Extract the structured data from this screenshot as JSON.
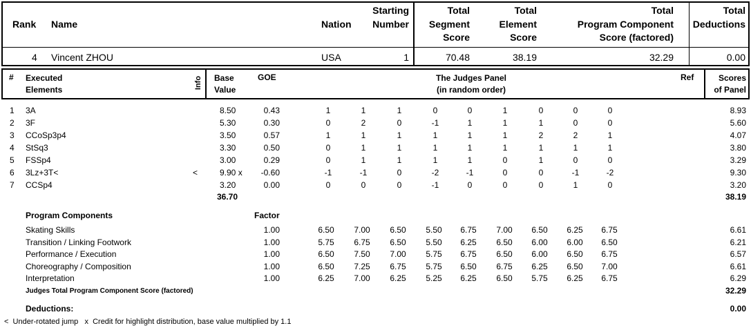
{
  "summary": {
    "headers": {
      "rank": "Rank",
      "name": "Name",
      "nation": "Nation",
      "starting_number": "Starting\nNumber",
      "total_segment": "Total\nSegment\nScore",
      "total_element": "Total\nElement\nScore",
      "total_program": "Total\nProgram Component\nScore (factored)",
      "total_deductions": "Total\nDeductions"
    },
    "row": {
      "rank": "4",
      "name": "Vincent ZHOU",
      "nation": "USA",
      "starting_number": "1",
      "total_segment": "70.48",
      "total_element": "38.19",
      "total_program": "32.29",
      "total_deductions": "0.00"
    }
  },
  "elements": {
    "headers": {
      "num": "#",
      "executed": "Executed\nElements",
      "info": "Info",
      "base": "Base\nValue",
      "goe": "GOE",
      "panel": "The Judges Panel\n(in random order)",
      "ref": "Ref",
      "scores": "Scores\nof Panel"
    },
    "rows": [
      {
        "num": "1",
        "name": "3A",
        "info": "",
        "base": "8.50",
        "goe": "0.43",
        "judges": [
          "1",
          "1",
          "1",
          "0",
          "0",
          "1",
          "0",
          "0",
          "0"
        ],
        "score": "8.93"
      },
      {
        "num": "2",
        "name": "3F",
        "info": "",
        "base": "5.30",
        "goe": "0.30",
        "judges": [
          "0",
          "2",
          "0",
          "-1",
          "1",
          "1",
          "1",
          "0",
          "0"
        ],
        "score": "5.60"
      },
      {
        "num": "3",
        "name": "CCoSp3p4",
        "info": "",
        "base": "3.50",
        "goe": "0.57",
        "judges": [
          "1",
          "1",
          "1",
          "1",
          "1",
          "1",
          "2",
          "2",
          "1"
        ],
        "score": "4.07"
      },
      {
        "num": "4",
        "name": "StSq3",
        "info": "",
        "base": "3.30",
        "goe": "0.50",
        "judges": [
          "0",
          "1",
          "1",
          "1",
          "1",
          "1",
          "1",
          "1",
          "1"
        ],
        "score": "3.80"
      },
      {
        "num": "5",
        "name": "FSSp4",
        "info": "",
        "base": "3.00",
        "goe": "0.29",
        "judges": [
          "0",
          "1",
          "1",
          "1",
          "1",
          "0",
          "1",
          "0",
          "0"
        ],
        "score": "3.29"
      },
      {
        "num": "6",
        "name": "3Lz+3T<",
        "info": "<",
        "base": "9.90 x",
        "goe": "-0.60",
        "judges": [
          "-1",
          "-1",
          "0",
          "-2",
          "-1",
          "0",
          "0",
          "-1",
          "-2"
        ],
        "score": "9.30"
      },
      {
        "num": "7",
        "name": "CCSp4",
        "info": "",
        "base": "3.20",
        "goe": "0.00",
        "judges": [
          "0",
          "0",
          "0",
          "-1",
          "0",
          "0",
          "0",
          "1",
          "0"
        ],
        "score": "3.20"
      }
    ],
    "base_total": "36.70",
    "score_total": "38.19"
  },
  "components": {
    "title": "Program Components",
    "factor_label": "Factor",
    "rows": [
      {
        "name": "Skating Skills",
        "factor": "1.00",
        "judges": [
          "6.50",
          "7.00",
          "6.50",
          "5.50",
          "6.75",
          "7.00",
          "6.50",
          "6.25",
          "6.75"
        ],
        "score": "6.61"
      },
      {
        "name": "Transition / Linking Footwork",
        "factor": "1.00",
        "judges": [
          "5.75",
          "6.75",
          "6.50",
          "5.50",
          "6.25",
          "6.50",
          "6.00",
          "6.00",
          "6.50"
        ],
        "score": "6.21"
      },
      {
        "name": "Performance / Execution",
        "factor": "1.00",
        "judges": [
          "6.50",
          "7.50",
          "7.00",
          "5.75",
          "6.75",
          "6.50",
          "6.00",
          "6.50",
          "6.75"
        ],
        "score": "6.57"
      },
      {
        "name": "Choreography / Composition",
        "factor": "1.00",
        "judges": [
          "6.50",
          "7.25",
          "6.75",
          "5.75",
          "6.50",
          "6.75",
          "6.25",
          "6.50",
          "7.00"
        ],
        "score": "6.61"
      },
      {
        "name": "Interpretation",
        "factor": "1.00",
        "judges": [
          "6.25",
          "7.00",
          "6.25",
          "5.25",
          "6.25",
          "6.50",
          "5.75",
          "6.25",
          "6.75"
        ],
        "score": "6.29"
      }
    ],
    "total_label": "Judges Total Program Component Score (factored)",
    "total": "32.29"
  },
  "deductions": {
    "label": "Deductions:",
    "value": "0.00"
  },
  "footnote": "<  Under-rotated jump   x  Credit for highlight distribution, base value multiplied by 1.1"
}
